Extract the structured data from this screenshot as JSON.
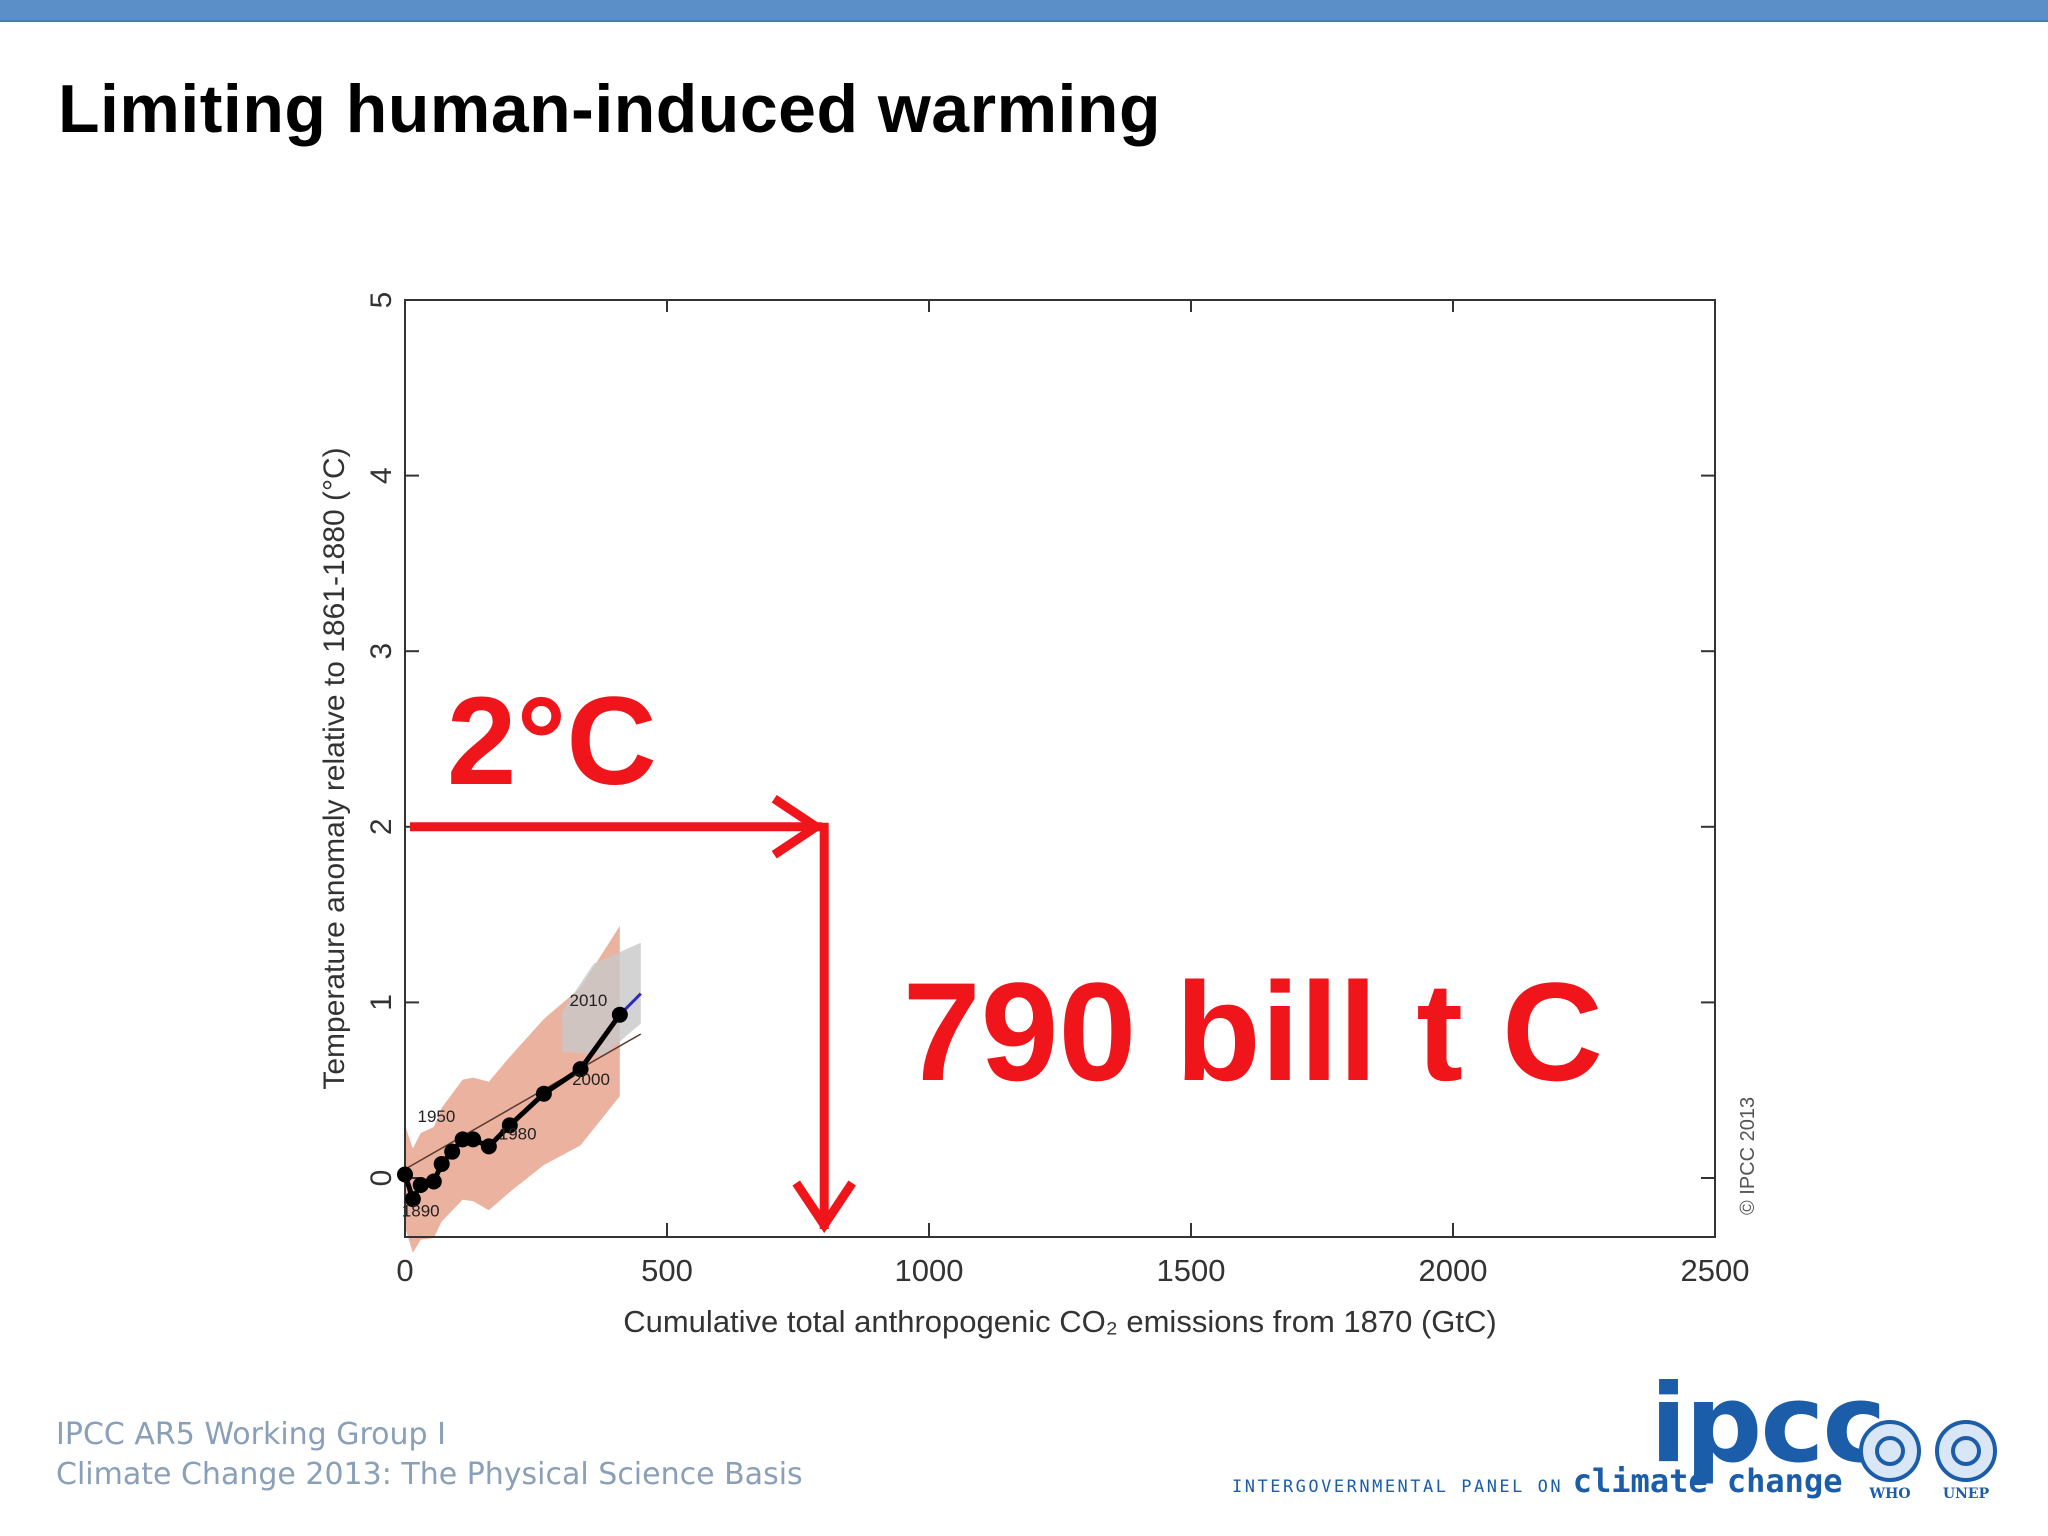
{
  "slide": {
    "title": "Limiting human-induced warming",
    "footer_line1": "IPCC AR5 Working Group I",
    "footer_line2": "Climate Change 2013: The Physical Science Basis",
    "logo_text": "ipcc",
    "logo_sub_small": "INTERGOVERNMENTAL PANEL ON",
    "logo_sub_big": "climate change",
    "org1": "WHO",
    "org2": "UNEP",
    "copyright": "© IPCC 2013"
  },
  "colors": {
    "annotation": "#f0151b",
    "observed": "#000000",
    "uncertainty": "#e8a58e",
    "model_range": "#c8c8c8",
    "topbar": "#5b8fc7"
  },
  "chart_data": {
    "type": "line",
    "xlabel": "Cumulative total anthropogenic CO₂ emissions from 1870 (GtC)",
    "ylabel": "Temperature anomaly relative to 1861-1880 (°C)",
    "xlim": [
      0,
      2500
    ],
    "ylim": [
      -0.35,
      5
    ],
    "xticks": [
      0,
      500,
      1000,
      1500,
      2000,
      2500
    ],
    "yticks": [
      0,
      1,
      2,
      3,
      4,
      5
    ],
    "series": [
      {
        "x": [
          0,
          15,
          30,
          55,
          70,
          90,
          110,
          130,
          160,
          200,
          265,
          335,
          410
        ],
        "y": [
          0.02,
          -0.12,
          -0.04,
          -0.02,
          0.08,
          0.15,
          0.22,
          0.22,
          0.18,
          0.3,
          0.48,
          0.62,
          0.93
        ]
      }
    ],
    "point_labels": [
      {
        "text": "1890",
        "x": 30,
        "y": -0.22
      },
      {
        "text": "1950",
        "x": 60,
        "y": 0.32
      },
      {
        "text": "1980",
        "x": 215,
        "y": 0.22
      },
      {
        "text": "2000",
        "x": 355,
        "y": 0.53
      },
      {
        "text": "2010",
        "x": 350,
        "y": 0.98
      }
    ],
    "annotations": [
      {
        "text": "2°C",
        "x": 80,
        "y": 2.5
      },
      {
        "text": "790 bill t C",
        "x": 950,
        "y": 0.9
      }
    ],
    "marker": {
      "x": 800,
      "y": 2
    }
  }
}
